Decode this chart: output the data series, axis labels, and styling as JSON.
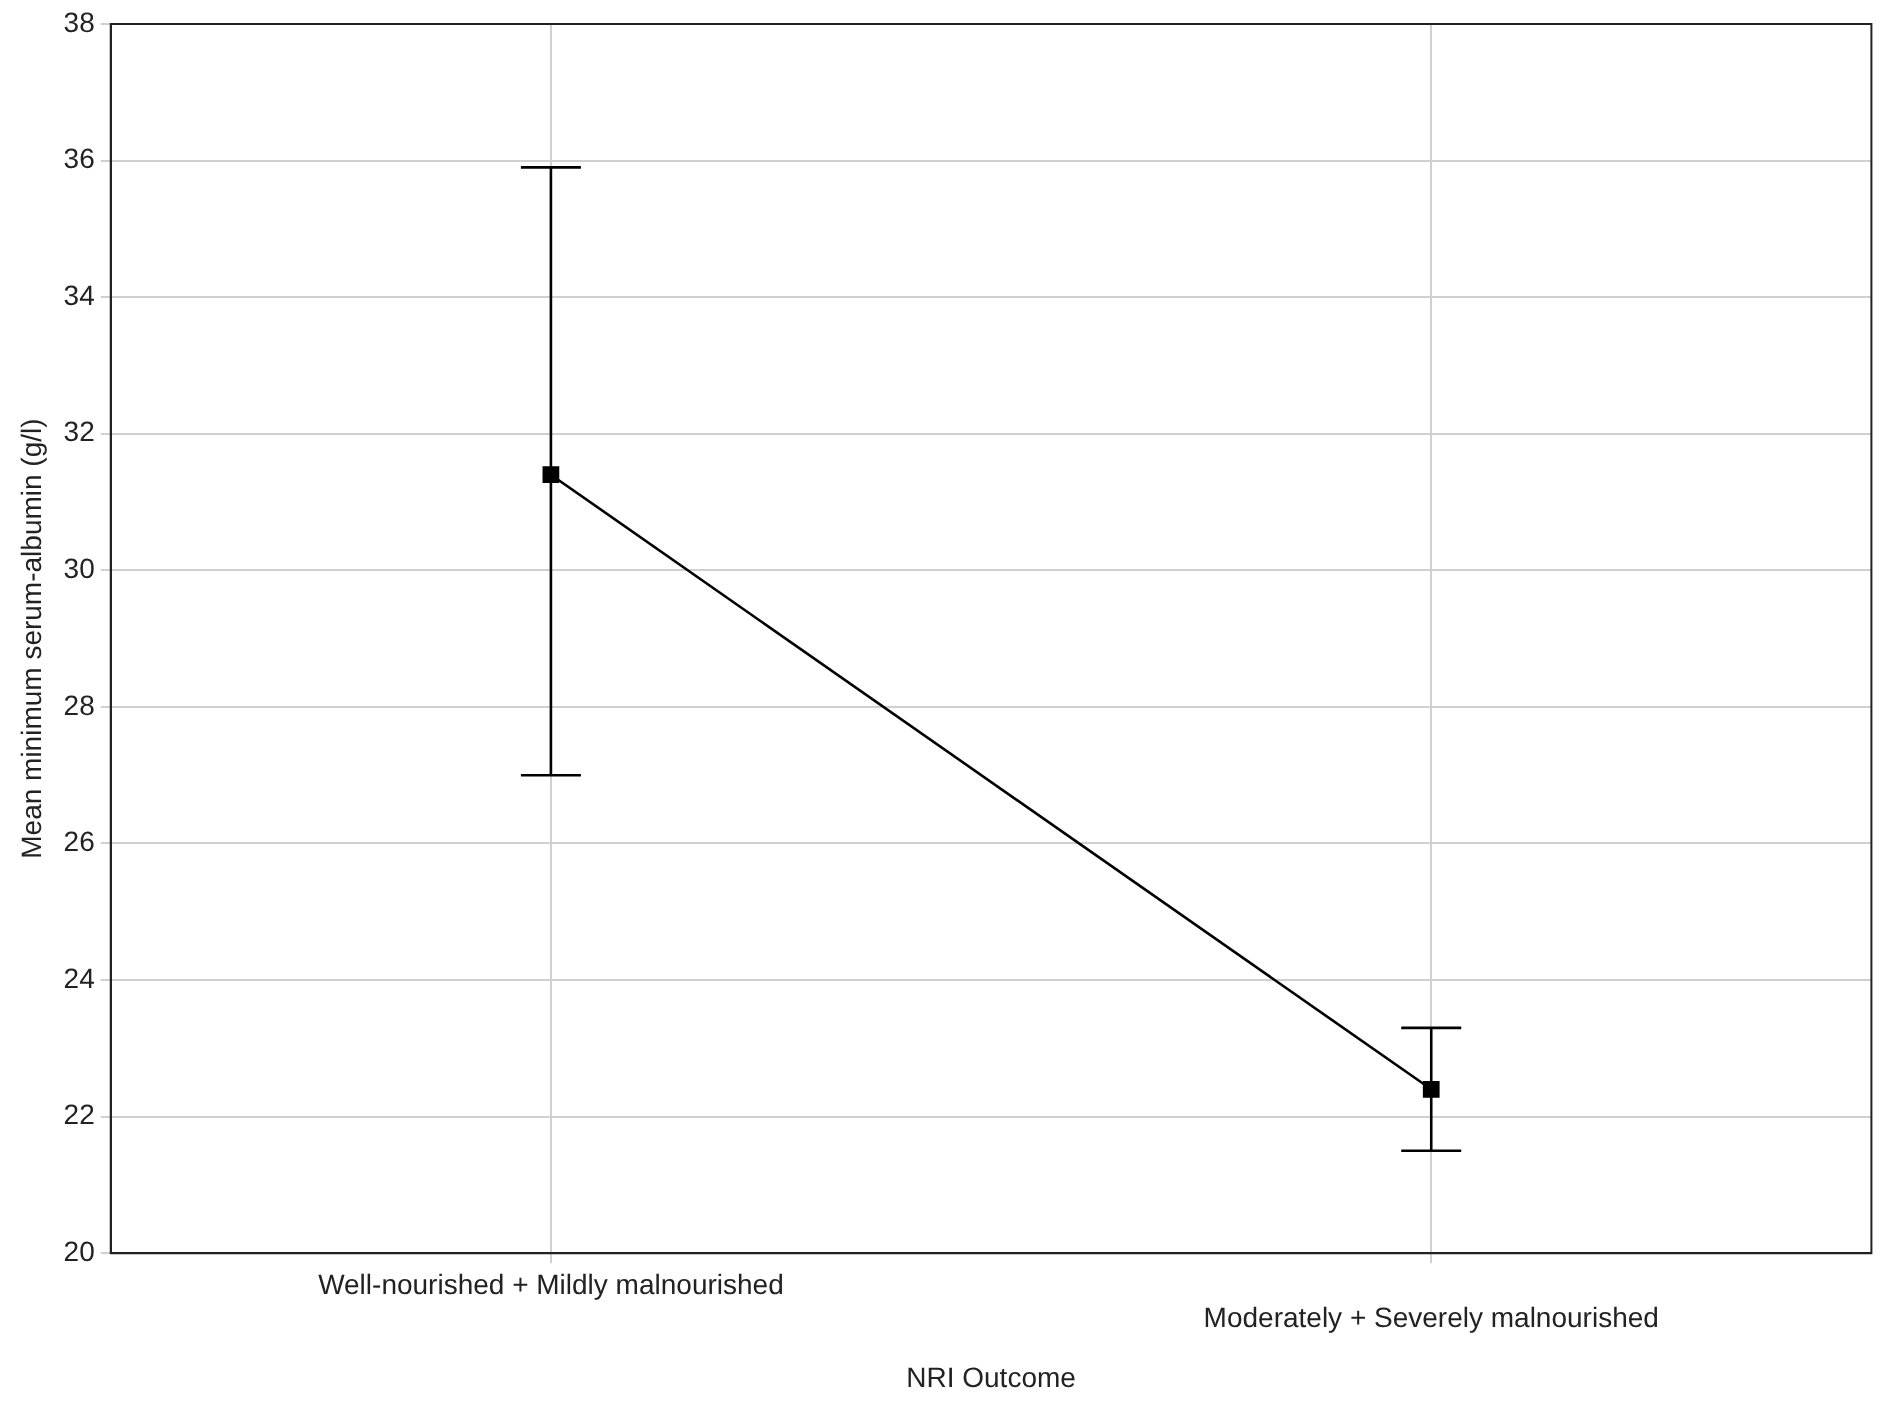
{
  "chart_data": {
    "type": "line",
    "xlabel": "NRI Outcome",
    "ylabel": "Mean minimum serum-albumin (g/l)",
    "categories": [
      "Well-nourished + Mildly malnourished",
      "Moderately + Severely malnourished"
    ],
    "series": [
      {
        "color": "#000000",
        "values": [
          31.4,
          22.4
        ],
        "errors": [
          [
            27.0,
            35.9
          ],
          [
            21.5,
            23.3
          ]
        ]
      }
    ],
    "ylim": [
      20,
      38
    ],
    "yticks": [
      20,
      22,
      24,
      26,
      28,
      30,
      32,
      34,
      36,
      38
    ],
    "grid": true,
    "marker": "square",
    "line_style": "solid",
    "legend": false
  }
}
